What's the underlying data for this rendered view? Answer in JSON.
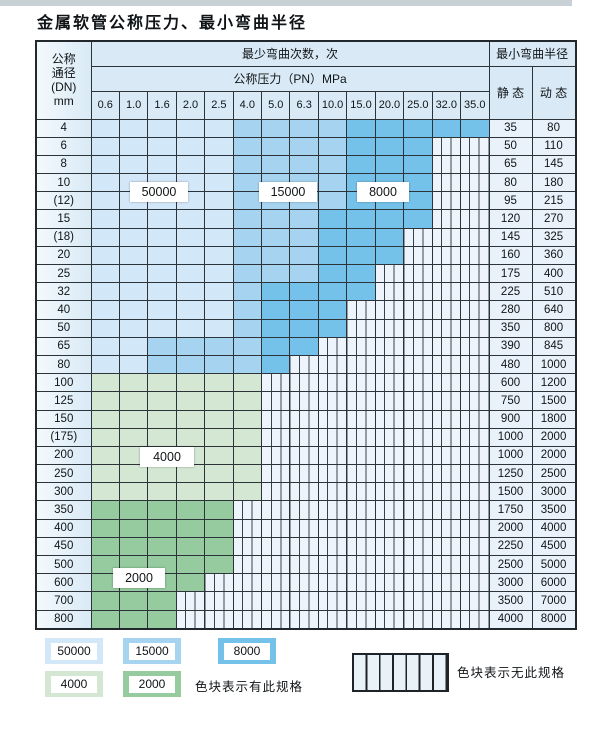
{
  "page": {
    "title": "金属软管公称压力、最小弯曲半径"
  },
  "chart_data": {
    "type": "table",
    "title": "金属软管公称压力、最小弯曲半径",
    "header": {
      "dn_lines": [
        "公称",
        "通径",
        "(DN)",
        "mm"
      ],
      "bend_cycles": "最少弯曲次数，次",
      "pressure_title": "公称压力（PN）MPa",
      "pressures": [
        "0.6",
        "1.0",
        "1.6",
        "2.0",
        "2.5",
        "4.0",
        "5.0",
        "6.3",
        "10.0",
        "15.0",
        "20.0",
        "25.0",
        "32.0",
        "35.0"
      ],
      "min_radius": "最小弯曲半径",
      "static_label": "静 态",
      "dynamic_label": "动 态"
    },
    "cell_colors": {
      "b50": "#d2e7f8",
      "b15": "#a6d4f0",
      "b8": "#74c2ea",
      "g4": "#d3e7d2",
      "g2": "#95cb9f"
    },
    "cycles_of_color": {
      "b50": "50000",
      "b15": "15000",
      "b8": "8000",
      "g4": "4000",
      "g2": "2000"
    },
    "rows": [
      {
        "dn": "4",
        "cells": [
          [
            "b50",
            5
          ],
          [
            "b15",
            4
          ],
          [
            "b8",
            5
          ]
        ],
        "static": "35",
        "dynamic": "80"
      },
      {
        "dn": "6",
        "cells": [
          [
            "b50",
            5
          ],
          [
            "b15",
            4
          ],
          [
            "b8",
            3
          ]
        ],
        "static": "50",
        "dynamic": "110"
      },
      {
        "dn": "8",
        "cells": [
          [
            "b50",
            5
          ],
          [
            "b15",
            4
          ],
          [
            "b8",
            3
          ]
        ],
        "static": "65",
        "dynamic": "145"
      },
      {
        "dn": "10",
        "cells": [
          [
            "b50",
            5
          ],
          [
            "b15",
            4
          ],
          [
            "b8",
            3
          ]
        ],
        "static": "80",
        "dynamic": "180"
      },
      {
        "dn": "(12)",
        "cells": [
          [
            "b50",
            5
          ],
          [
            "b15",
            4
          ],
          [
            "b8",
            3
          ]
        ],
        "static": "95",
        "dynamic": "215"
      },
      {
        "dn": "15",
        "cells": [
          [
            "b50",
            5
          ],
          [
            "b15",
            3
          ],
          [
            "b8",
            4
          ]
        ],
        "static": "120",
        "dynamic": "270"
      },
      {
        "dn": "(18)",
        "cells": [
          [
            "b50",
            5
          ],
          [
            "b15",
            3
          ],
          [
            "b8",
            3
          ]
        ],
        "static": "145",
        "dynamic": "325"
      },
      {
        "dn": "20",
        "cells": [
          [
            "b50",
            5
          ],
          [
            "b15",
            3
          ],
          [
            "b8",
            3
          ]
        ],
        "static": "160",
        "dynamic": "360"
      },
      {
        "dn": "25",
        "cells": [
          [
            "b50",
            5
          ],
          [
            "b15",
            3
          ],
          [
            "b8",
            2
          ]
        ],
        "static": "175",
        "dynamic": "400"
      },
      {
        "dn": "32",
        "cells": [
          [
            "b50",
            5
          ],
          [
            "b15",
            1
          ],
          [
            "b8",
            4
          ]
        ],
        "static": "225",
        "dynamic": "510"
      },
      {
        "dn": "40",
        "cells": [
          [
            "b50",
            5
          ],
          [
            "b15",
            1
          ],
          [
            "b8",
            3
          ]
        ],
        "static": "280",
        "dynamic": "640"
      },
      {
        "dn": "50",
        "cells": [
          [
            "b50",
            5
          ],
          [
            "b15",
            1
          ],
          [
            "b8",
            3
          ]
        ],
        "static": "350",
        "dynamic": "800"
      },
      {
        "dn": "65",
        "cells": [
          [
            "b50",
            2
          ],
          [
            "b15",
            4
          ],
          [
            "b8",
            2
          ]
        ],
        "static": "390",
        "dynamic": "845"
      },
      {
        "dn": "80",
        "cells": [
          [
            "b50",
            2
          ],
          [
            "b15",
            4
          ],
          [
            "b8",
            1
          ]
        ],
        "static": "480",
        "dynamic": "1000"
      },
      {
        "dn": "100",
        "cells": [
          [
            "g4",
            6
          ]
        ],
        "static": "600",
        "dynamic": "1200"
      },
      {
        "dn": "125",
        "cells": [
          [
            "g4",
            6
          ]
        ],
        "static": "750",
        "dynamic": "1500"
      },
      {
        "dn": "150",
        "cells": [
          [
            "g4",
            6
          ]
        ],
        "static": "900",
        "dynamic": "1800"
      },
      {
        "dn": "(175)",
        "cells": [
          [
            "g4",
            6
          ]
        ],
        "static": "1000",
        "dynamic": "2000"
      },
      {
        "dn": "200",
        "cells": [
          [
            "g4",
            6
          ]
        ],
        "static": "1000",
        "dynamic": "2000"
      },
      {
        "dn": "250",
        "cells": [
          [
            "g4",
            6
          ]
        ],
        "static": "1250",
        "dynamic": "2500"
      },
      {
        "dn": "300",
        "cells": [
          [
            "g4",
            6
          ]
        ],
        "static": "1500",
        "dynamic": "3000"
      },
      {
        "dn": "350",
        "cells": [
          [
            "g2",
            5
          ]
        ],
        "static": "1750",
        "dynamic": "3500"
      },
      {
        "dn": "400",
        "cells": [
          [
            "g2",
            5
          ]
        ],
        "static": "2000",
        "dynamic": "4000"
      },
      {
        "dn": "450",
        "cells": [
          [
            "g2",
            5
          ]
        ],
        "static": "2250",
        "dynamic": "4500"
      },
      {
        "dn": "500",
        "cells": [
          [
            "g2",
            5
          ]
        ],
        "static": "2500",
        "dynamic": "5000"
      },
      {
        "dn": "600",
        "cells": [
          [
            "g2",
            4
          ]
        ],
        "static": "3000",
        "dynamic": "6000"
      },
      {
        "dn": "700",
        "cells": [
          [
            "g2",
            3
          ]
        ],
        "static": "3500",
        "dynamic": "7000"
      },
      {
        "dn": "800",
        "cells": [
          [
            "g2",
            3
          ]
        ],
        "static": "4000",
        "dynamic": "8000"
      }
    ]
  },
  "overlays": {
    "v50000": "50000",
    "v15000": "15000",
    "v8000": "8000",
    "v4000": "4000",
    "v2000": "2000"
  },
  "legend": {
    "items": [
      {
        "value": "50000",
        "color": "b50"
      },
      {
        "value": "15000",
        "color": "b15"
      },
      {
        "value": "8000",
        "color": "b8"
      },
      {
        "value": "4000",
        "color": "g4"
      },
      {
        "value": "2000",
        "color": "g2"
      }
    ],
    "has_spec_text": "色块表示有此规格",
    "no_spec_text": "色块表示无此规格"
  }
}
